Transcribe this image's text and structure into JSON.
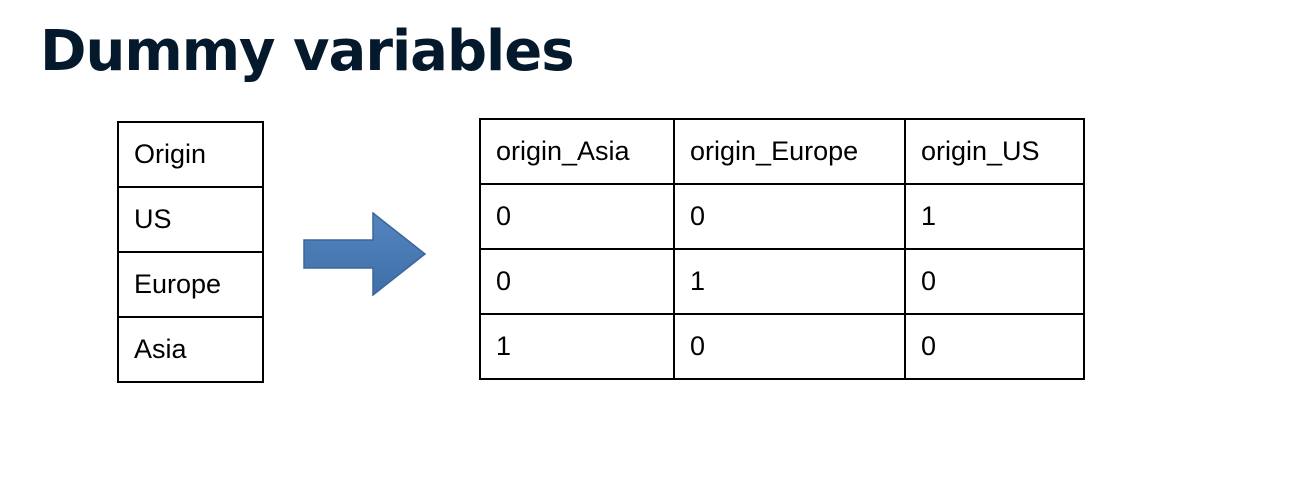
{
  "slide": {
    "title": "Dummy variables"
  },
  "origin_table": {
    "rows": [
      "Origin",
      "US",
      "Europe",
      "Asia"
    ]
  },
  "dummy_table": {
    "headers": [
      "origin_Asia",
      "origin_Europe",
      "origin_US"
    ],
    "rows": [
      [
        "0",
        "0",
        "1"
      ],
      [
        "0",
        "1",
        "0"
      ],
      [
        "1",
        "0",
        "0"
      ]
    ]
  },
  "icons": {
    "arrow": "arrow-right-icon"
  },
  "colors": {
    "title": "#05192d",
    "arrow_fill": "#4a7ab5",
    "arrow_stroke": "#3a669c"
  }
}
